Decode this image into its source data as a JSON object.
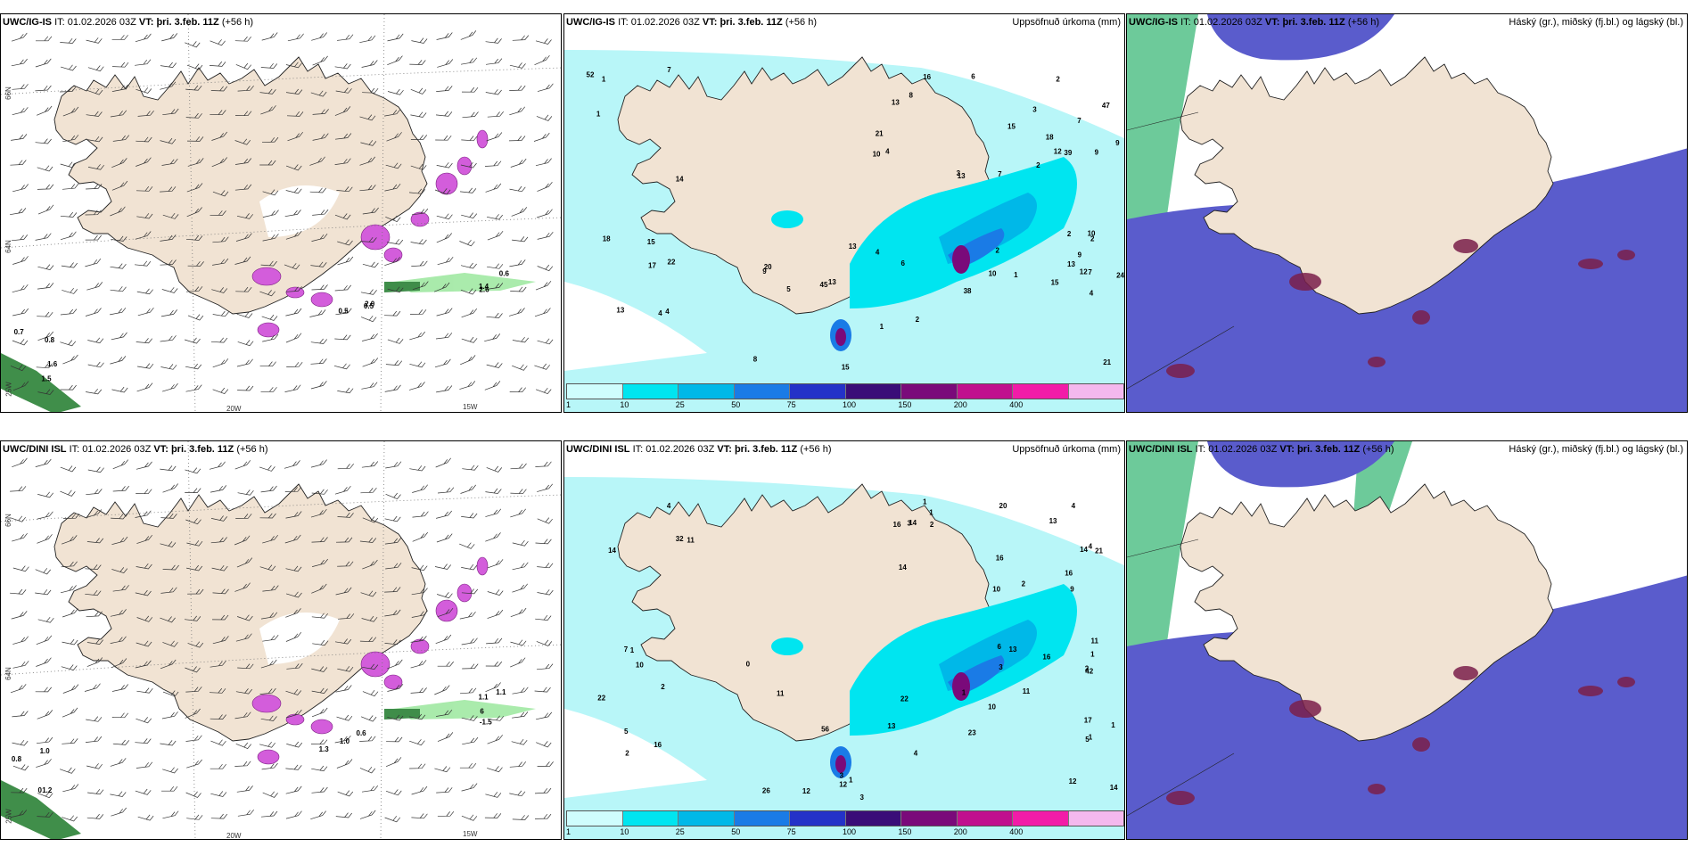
{
  "panels": [
    {
      "id": "p1",
      "model": "UWC/IG-IS",
      "it_label": "IT:",
      "it": "01.02.2026 03Z",
      "vt_label": "VT:",
      "vt": "þri. 3.feb. 11Z",
      "lead": "(+56 h)",
      "right_title": "",
      "type": "wind"
    },
    {
      "id": "p2",
      "model": "UWC/IG-IS",
      "it_label": "IT:",
      "it": "01.02.2026 03Z",
      "vt_label": "VT:",
      "vt": "þri. 3.feb. 11Z",
      "lead": "(+56 h)",
      "right_title": "Uppsöfnuð úrkoma (mm)",
      "type": "precip"
    },
    {
      "id": "p3",
      "model": "UWC/IG-IS",
      "it_label": "IT:",
      "it": "01.02.2026 03Z",
      "vt_label": "VT:",
      "vt": "þri. 3.feb. 11Z",
      "lead": "(+56 h)",
      "right_title": "Háský (gr.), miðský (fj.bl.) og lágský (bl.)",
      "type": "cloud"
    },
    {
      "id": "p4",
      "model": "UWC/DINI ISL",
      "it_label": "IT:",
      "it": "01.02.2026 03Z",
      "vt_label": "VT:",
      "vt": "þri. 3.feb. 11Z",
      "lead": "(+56 h)",
      "right_title": "",
      "type": "wind"
    },
    {
      "id": "p5",
      "model": "UWC/DINI ISL",
      "it_label": "IT:",
      "it": "01.02.2026 03Z",
      "vt_label": "VT:",
      "vt": "þri. 3.feb. 11Z",
      "lead": "(+56 h)",
      "right_title": "Uppsöfnuð úrkoma (mm)",
      "type": "precip"
    },
    {
      "id": "p6",
      "model": "UWC/DINI ISL",
      "it_label": "IT:",
      "it": "01.02.2026 03Z",
      "vt_label": "VT:",
      "vt": "þri. 3.feb. 11Z",
      "lead": "(+56 h)",
      "right_title": "Háský (gr.), miðský (fj.bl.) og lágský (bl.)",
      "type": "cloud"
    }
  ],
  "grid_labels": {
    "lat66": "66N",
    "lat64": "64N",
    "lon25": "25W",
    "lon20": "20W",
    "lon15": "15W"
  },
  "precip_legend": {
    "ticks": [
      "1",
      "10",
      "25",
      "50",
      "75",
      "100",
      "150",
      "200",
      "400"
    ],
    "colors": [
      "#cffdfd",
      "#00e5f0",
      "#00b8e8",
      "#1a7be6",
      "#2432c8",
      "#3a0d78",
      "#7a0a7a",
      "#c0108e",
      "#f21ca8",
      "#f4b8ee"
    ]
  },
  "colors": {
    "land": "#f1e3d3",
    "sea_precip": "#b8f6f8",
    "cloud_low": "#5a5ccc",
    "cloud_high": "#3cb878",
    "snow": "#d35ddb",
    "rain_green": "#1e7a2a"
  },
  "wind_numbers_p1": [
    "1.5",
    "2.6",
    "2.0",
    "0.8",
    "0.6",
    "0.5",
    "1.6",
    "1.4",
    "0.5",
    "0.7"
  ],
  "wind_numbers_p4": [
    "1.2",
    "1.1",
    "1.0",
    "0.8",
    "-1.5",
    "0.6",
    "1.0",
    "1.1",
    "1.3",
    "0",
    "6"
  ],
  "precip_numbers_p2": [
    "1",
    "2",
    "3",
    "1",
    "2",
    "1",
    "2",
    "18",
    "13",
    "9",
    "4",
    "6",
    "1",
    "2",
    "4",
    "7",
    "3",
    "2",
    "6",
    "7",
    "4",
    "4",
    "2",
    "4",
    "47",
    "22",
    "21",
    "13",
    "20",
    "24",
    "17",
    "15",
    "10",
    "15",
    "21",
    "18",
    "16",
    "15",
    "9",
    "13",
    "14",
    "10",
    "10",
    "13",
    "9",
    "13",
    "8",
    "38",
    "45",
    "39",
    "52",
    "7",
    "7",
    "5",
    "12",
    "15",
    "13",
    "12",
    "8",
    "9"
  ],
  "precip_numbers_p5": [
    "2",
    "1",
    "3",
    "0",
    "12",
    "14",
    "2",
    "6",
    "3",
    "1",
    "2",
    "4",
    "1",
    "3",
    "4",
    "7",
    "16",
    "2",
    "4",
    "1",
    "1",
    "3",
    "2",
    "1",
    "5",
    "4",
    "1",
    "1",
    "56",
    "14",
    "22",
    "14",
    "16",
    "12",
    "17",
    "11",
    "13",
    "10",
    "11",
    "16",
    "5",
    "20",
    "23",
    "22",
    "21",
    "16",
    "14",
    "13",
    "13",
    "11",
    "10",
    "9",
    "10",
    "26",
    "42",
    "32",
    "16",
    "11",
    "12",
    "14"
  ]
}
